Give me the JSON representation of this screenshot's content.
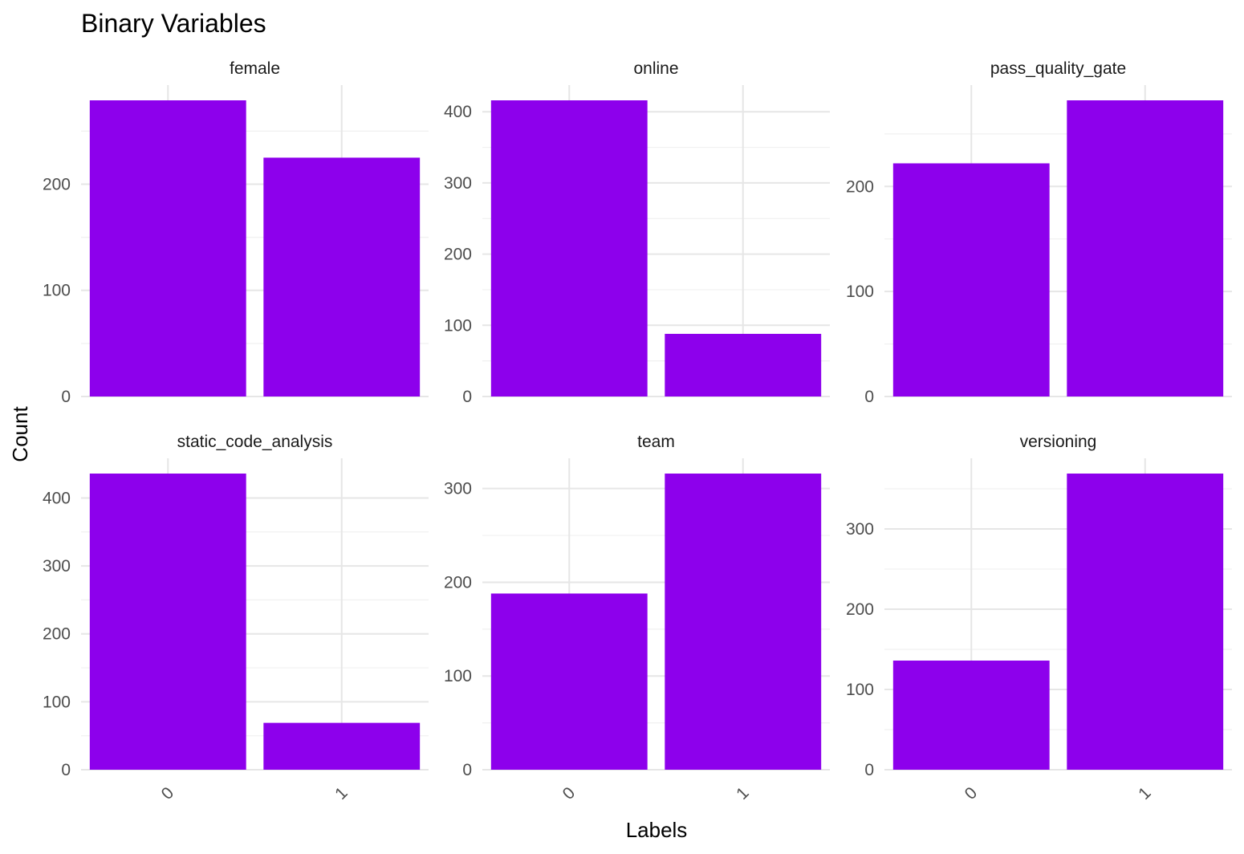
{
  "colors": {
    "bar": "#8d00ec",
    "grid_major": "#e6e6e6",
    "grid_minor": "#f0f0f0",
    "tick_text": "#4d4d4d"
  },
  "chart_data": {
    "type": "bar",
    "title": "Binary Variables",
    "xlabel": "Labels",
    "ylabel": "Count",
    "categories": [
      "0",
      "1"
    ],
    "grid": true,
    "legend": "none",
    "x_tick_rotation_deg": -45,
    "panels": [
      {
        "name": "female",
        "values": [
          279,
          225
        ],
        "ylim": [
          0,
          279
        ],
        "yticks": [
          0,
          100,
          200
        ]
      },
      {
        "name": "online",
        "values": [
          416,
          88
        ],
        "ylim": [
          0,
          416
        ],
        "yticks": [
          0,
          100,
          200,
          300,
          400
        ]
      },
      {
        "name": "pass_quality_gate",
        "values": [
          222,
          282
        ],
        "ylim": [
          0,
          282
        ],
        "yticks": [
          0,
          100,
          200
        ]
      },
      {
        "name": "static_code_analysis",
        "values": [
          436,
          69
        ],
        "ylim": [
          0,
          436
        ],
        "yticks": [
          0,
          100,
          200,
          300,
          400
        ]
      },
      {
        "name": "team",
        "values": [
          188,
          316
        ],
        "ylim": [
          0,
          316
        ],
        "yticks": [
          0,
          100,
          200,
          300
        ]
      },
      {
        "name": "versioning",
        "values": [
          136,
          369
        ],
        "ylim": [
          0,
          369
        ],
        "yticks": [
          0,
          100,
          200,
          300
        ]
      }
    ]
  }
}
